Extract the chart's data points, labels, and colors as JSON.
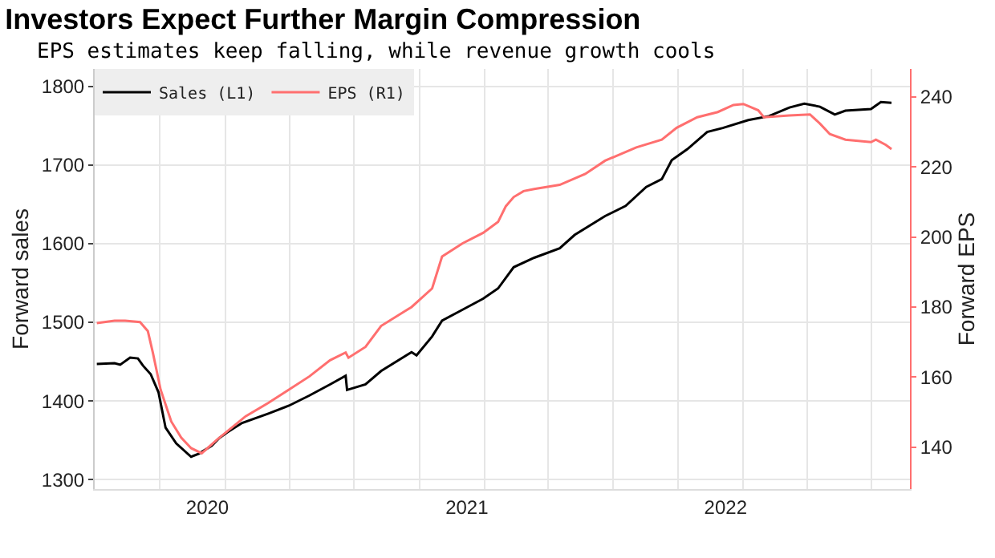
{
  "chart_data": {
    "type": "line",
    "title": "Investors Expect Further Margin Compression",
    "subtitle": "EPS estimates keep falling, while revenue growth cools",
    "ylabel": "Forward sales",
    "y2label": "Forward EPS",
    "xlim": [
      "2019-07-26",
      "2022-09-18"
    ],
    "xticks": [
      {
        "value": "2020-01-01",
        "label": "2020"
      },
      {
        "value": "2021-01-01",
        "label": "2021"
      },
      {
        "value": "2022-01-01",
        "label": "2022"
      },
      {
        "value": "2019-10-26",
        "label": null
      },
      {
        "value": "2020-01-26",
        "label": null
      },
      {
        "value": "2020-04-26",
        "label": null
      },
      {
        "value": "2020-07-26",
        "label": null
      },
      {
        "value": "2020-10-26",
        "label": null
      },
      {
        "value": "2021-01-26",
        "label": null
      },
      {
        "value": "2021-04-26",
        "label": null
      },
      {
        "value": "2021-07-26",
        "label": null
      },
      {
        "value": "2021-10-26",
        "label": null
      },
      {
        "value": "2022-01-26",
        "label": null
      },
      {
        "value": "2022-04-26",
        "label": null
      },
      {
        "value": "2022-07-26",
        "label": null
      }
    ],
    "ylim": [
      1288,
      1822
    ],
    "yticks": [
      1300,
      1400,
      1500,
      1600,
      1700,
      1800
    ],
    "y2lim": [
      128,
      248
    ],
    "y2ticks": [
      140,
      160,
      180,
      200,
      220,
      240
    ],
    "grid": true,
    "legend": "top left",
    "line_style": "solid",
    "series": [
      {
        "name": "Sales (L1)",
        "color": "#000000",
        "x": [
          "2019-07-29",
          "2019-08-23",
          "2019-08-31",
          "2019-09-14",
          "2019-09-25",
          "2019-10-02",
          "2019-10-13",
          "2019-10-24",
          "2019-11-03",
          "2019-11-18",
          "2019-12-09",
          "2019-12-20",
          "2020-01-07",
          "2020-01-18",
          "2020-01-29",
          "2020-02-19",
          "2020-03-27",
          "2020-04-25",
          "2020-05-24",
          "2020-06-22",
          "2020-07-14",
          "2020-07-16",
          "2020-08-11",
          "2020-09-02",
          "2020-10-15",
          "2020-10-22",
          "2020-11-13",
          "2020-11-27",
          "2020-12-26",
          "2021-01-24",
          "2021-02-14",
          "2021-03-08",
          "2021-04-06",
          "2021-05-12",
          "2021-06-02",
          "2021-07-15",
          "2021-08-13",
          "2021-09-11",
          "2021-10-03",
          "2021-10-17",
          "2021-11-08",
          "2021-12-06",
          "2021-12-28",
          "2022-02-02",
          "2022-03-03",
          "2022-04-01",
          "2022-04-22",
          "2022-05-14",
          "2022-06-04",
          "2022-06-19",
          "2022-07-25",
          "2022-08-08",
          "2022-08-23"
        ],
        "values": [
          1447,
          1448,
          1446,
          1455,
          1454,
          1445,
          1434,
          1411,
          1366,
          1346,
          1329,
          1333,
          1343,
          1353,
          1360,
          1372,
          1384,
          1394,
          1407,
          1421,
          1432,
          1414,
          1421,
          1438,
          1462,
          1458,
          1482,
          1502,
          1516,
          1530,
          1543,
          1570,
          1582,
          1594,
          1611,
          1635,
          1648,
          1672,
          1682,
          1706,
          1720,
          1742,
          1747,
          1757,
          1762,
          1773,
          1778,
          1774,
          1764,
          1769,
          1771,
          1780,
          1779
        ]
      },
      {
        "name": "EPS (R1)",
        "color": "#ff6f6f",
        "axis": "y2",
        "x": [
          "2019-07-29",
          "2019-08-23",
          "2019-09-07",
          "2019-09-28",
          "2019-10-09",
          "2019-10-16",
          "2019-10-27",
          "2019-11-11",
          "2019-11-25",
          "2019-12-09",
          "2019-12-24",
          "2020-01-14",
          "2020-02-24",
          "2020-03-27",
          "2020-04-25",
          "2020-05-24",
          "2020-06-22",
          "2020-07-14",
          "2020-07-18",
          "2020-08-11",
          "2020-09-02",
          "2020-10-15",
          "2020-11-13",
          "2020-11-27",
          "2020-12-26",
          "2021-01-24",
          "2021-02-14",
          "2021-02-25",
          "2021-03-08",
          "2021-03-22",
          "2021-04-06",
          "2021-05-12",
          "2021-06-17",
          "2021-07-15",
          "2021-08-28",
          "2021-10-03",
          "2021-10-24",
          "2021-11-22",
          "2021-12-21",
          "2022-01-12",
          "2022-01-26",
          "2022-02-16",
          "2022-02-24",
          "2022-04-01",
          "2022-04-30",
          "2022-05-14",
          "2022-05-28",
          "2022-06-19",
          "2022-07-25",
          "2022-08-01",
          "2022-08-15",
          "2022-08-23"
        ],
        "values": [
          175.4,
          176.1,
          176.1,
          175.7,
          173.1,
          167.0,
          156.4,
          147.3,
          142.7,
          139.7,
          138.2,
          142.0,
          148.8,
          152.6,
          156.4,
          160.2,
          164.8,
          167.0,
          165.5,
          168.6,
          174.6,
          180.0,
          185.3,
          194.4,
          198.2,
          201.2,
          204.3,
          208.8,
          211.4,
          213.1,
          213.7,
          214.9,
          218.0,
          221.8,
          225.6,
          227.8,
          231.2,
          234.2,
          235.7,
          237.7,
          238.0,
          236.2,
          234.2,
          234.7,
          235.0,
          232.4,
          229.4,
          227.8,
          227.1,
          227.8,
          226.3,
          225.1
        ]
      }
    ]
  }
}
